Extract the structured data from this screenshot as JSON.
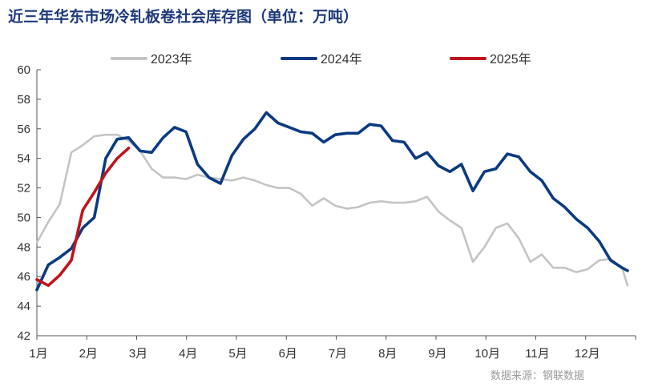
{
  "title": "近三年华东市场冷轧板卷社会库存图（单位：万吨）",
  "source": "数据来源：钢联数据",
  "colors": {
    "2023": "#c4c4c4",
    "2024": "#0b3a82",
    "2025": "#c0141c",
    "title": "#1f3a7a"
  },
  "chart_data": {
    "type": "line",
    "title": "近三年华东市场冷轧板卷社会库存图（单位：万吨）",
    "xlabel": "",
    "ylabel": "",
    "ylim": [
      42,
      60
    ],
    "yticks": [
      42,
      44,
      46,
      48,
      50,
      52,
      54,
      56,
      58,
      60
    ],
    "xlim": [
      1,
      13
    ],
    "xticks": [
      "1月",
      "2月",
      "3月",
      "4月",
      "5月",
      "6月",
      "7月",
      "8月",
      "9月",
      "10月",
      "11月",
      "12月"
    ],
    "legend_position": "top",
    "grid": false,
    "series": [
      {
        "name": "2023年",
        "color": "#c4c4c4",
        "x": [
          1.0,
          1.23,
          1.46,
          1.69,
          1.92,
          2.15,
          2.38,
          2.61,
          2.84,
          3.07,
          3.3,
          3.53,
          3.76,
          3.99,
          4.22,
          4.45,
          4.68,
          4.91,
          5.14,
          5.37,
          5.6,
          5.83,
          6.06,
          6.29,
          6.52,
          6.75,
          6.98,
          7.21,
          7.44,
          7.67,
          7.9,
          8.13,
          8.36,
          8.59,
          8.82,
          9.05,
          9.28,
          9.51,
          9.74,
          9.97,
          10.2,
          10.43,
          10.66,
          10.89,
          11.12,
          11.35,
          11.58,
          11.81,
          12.04,
          12.27,
          12.5,
          12.73,
          12.84
        ],
        "y": [
          48.3,
          49.7,
          50.9,
          54.4,
          54.9,
          55.5,
          55.6,
          55.6,
          55.2,
          54.5,
          53.3,
          52.7,
          52.7,
          52.6,
          52.9,
          52.7,
          52.6,
          52.5,
          52.7,
          52.5,
          52.2,
          52.0,
          52.0,
          51.6,
          50.8,
          51.3,
          50.8,
          50.6,
          50.7,
          51.0,
          51.1,
          51.0,
          51.0,
          51.1,
          51.4,
          50.4,
          49.8,
          49.3,
          47.0,
          48.0,
          49.3,
          49.6,
          48.6,
          47.0,
          47.5,
          46.6,
          46.6,
          46.3,
          46.5,
          47.1,
          47.2,
          46.6,
          45.4
        ]
      },
      {
        "name": "2024年",
        "color": "#0b3a82",
        "x": [
          1.0,
          1.23,
          1.46,
          1.69,
          1.92,
          2.15,
          2.38,
          2.61,
          2.84,
          3.07,
          3.3,
          3.53,
          3.76,
          3.99,
          4.22,
          4.45,
          4.68,
          4.91,
          5.14,
          5.37,
          5.6,
          5.83,
          6.06,
          6.29,
          6.52,
          6.75,
          6.98,
          7.21,
          7.44,
          7.67,
          7.9,
          8.13,
          8.36,
          8.59,
          8.82,
          9.05,
          9.28,
          9.51,
          9.74,
          9.97,
          10.2,
          10.43,
          10.66,
          10.89,
          11.12,
          11.35,
          11.58,
          11.81,
          12.04,
          12.27,
          12.5,
          12.73,
          12.84
        ],
        "y": [
          45.1,
          46.8,
          47.3,
          47.9,
          49.3,
          50.0,
          54.0,
          55.3,
          55.4,
          54.5,
          54.4,
          55.4,
          56.1,
          55.8,
          53.6,
          52.7,
          52.3,
          54.2,
          55.3,
          56.0,
          57.1,
          56.4,
          56.1,
          55.8,
          55.7,
          55.1,
          55.6,
          55.7,
          55.7,
          56.3,
          56.2,
          55.2,
          55.1,
          54.0,
          54.4,
          53.5,
          53.1,
          53.6,
          51.8,
          53.1,
          53.3,
          54.3,
          54.1,
          53.1,
          52.5,
          51.3,
          50.7,
          49.9,
          49.3,
          48.4,
          47.1,
          46.6,
          46.4
        ]
      },
      {
        "name": "2025年",
        "color": "#c0141c",
        "x": [
          1.0,
          1.23,
          1.46,
          1.69,
          1.92,
          2.15,
          2.38,
          2.61,
          2.84
        ],
        "y": [
          45.8,
          45.4,
          46.1,
          47.1,
          50.5,
          51.7,
          53.0,
          54.0,
          54.7
        ]
      }
    ]
  }
}
